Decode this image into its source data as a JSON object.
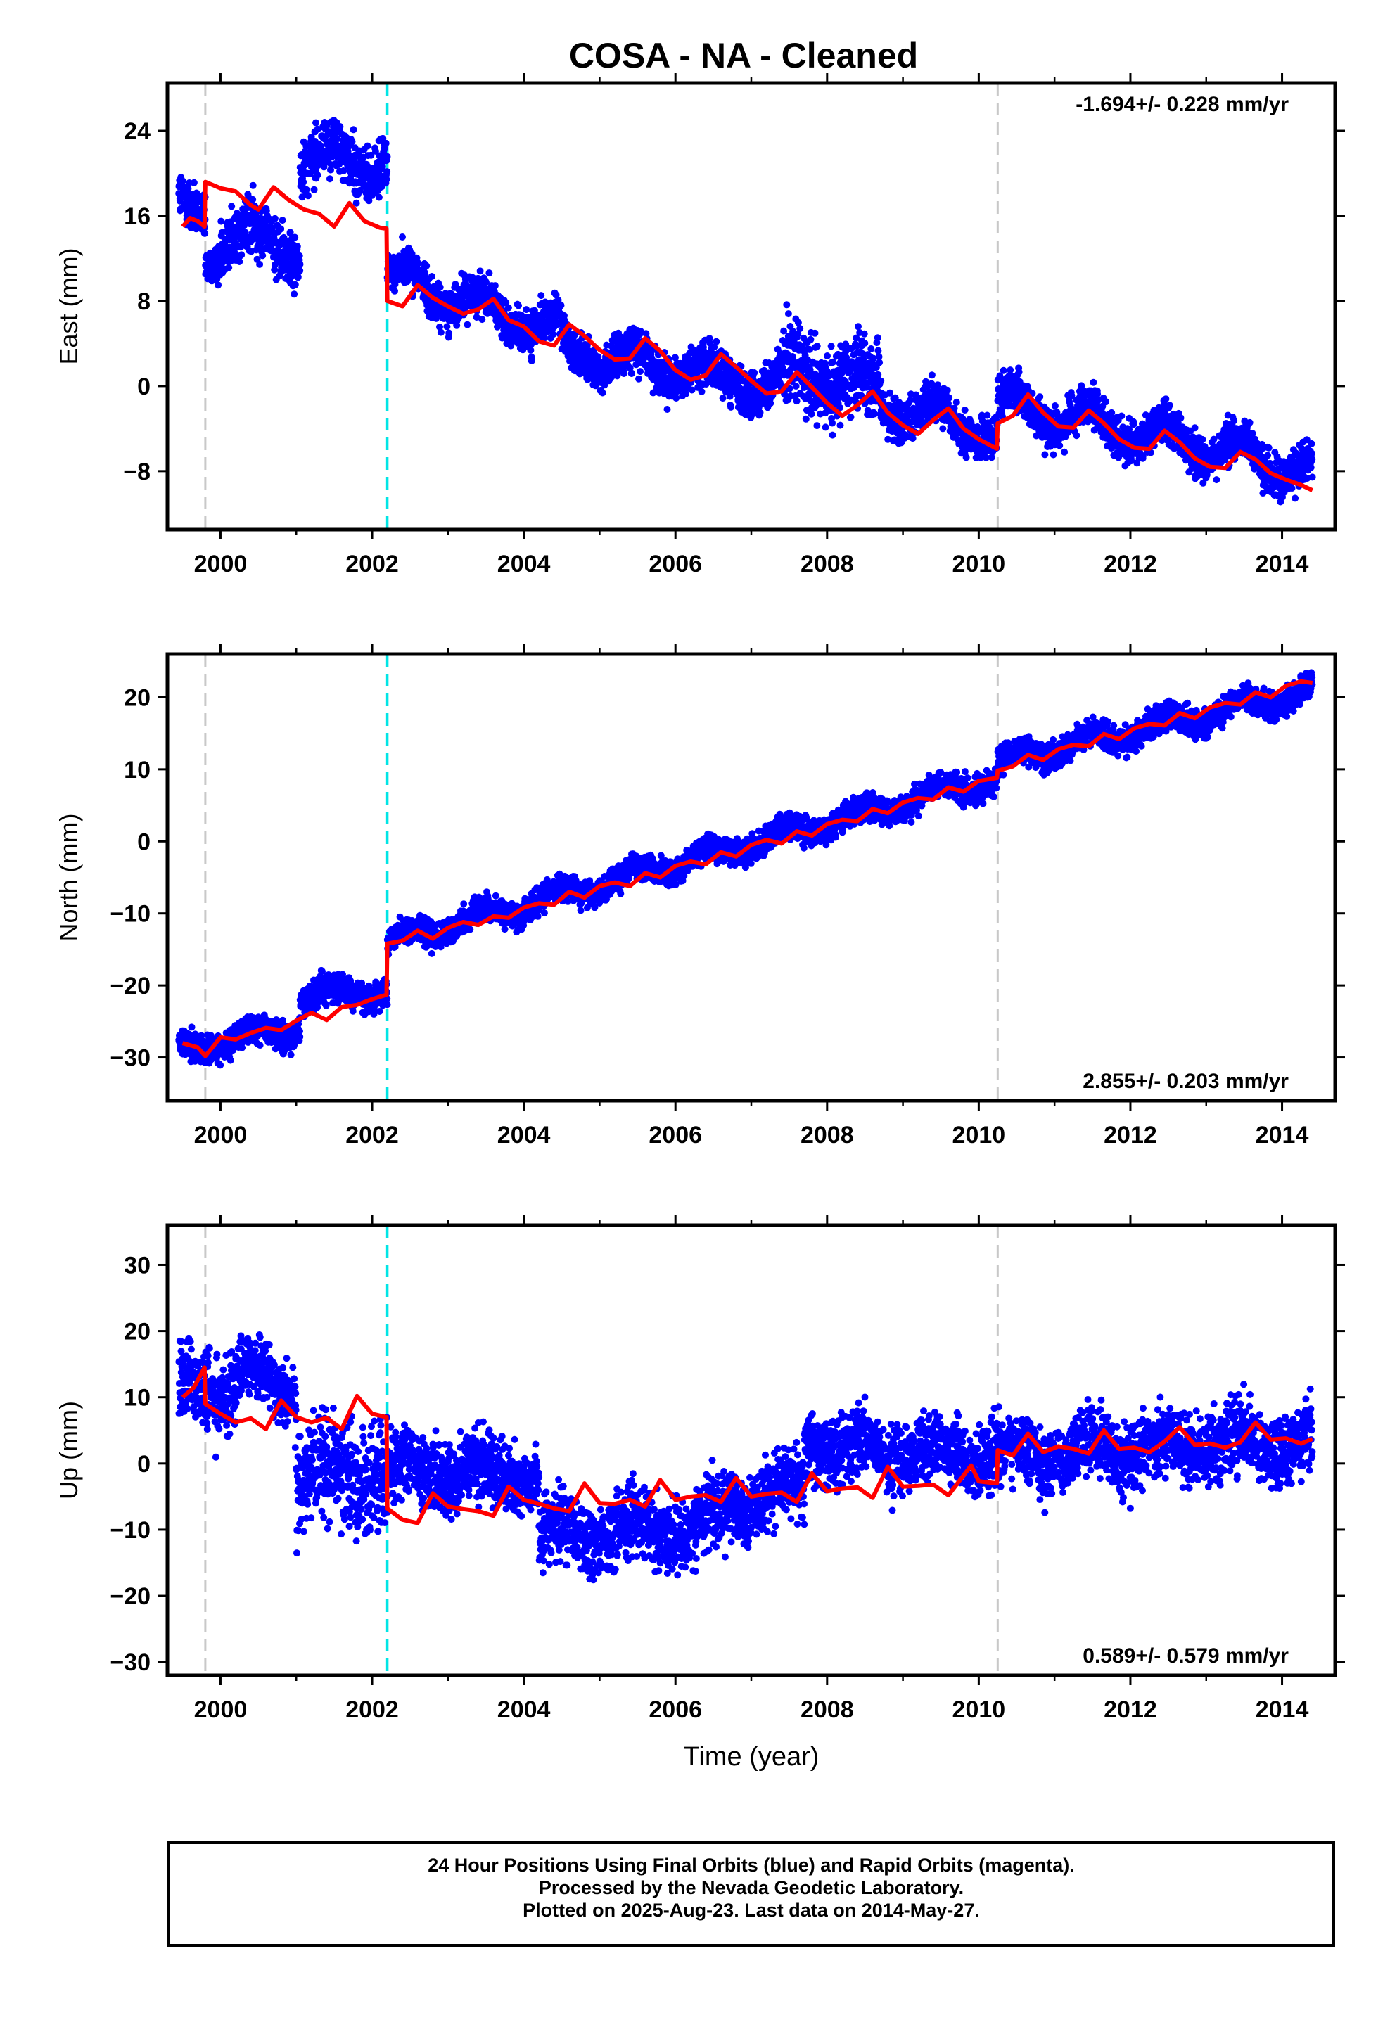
{
  "title": "COSA  - NA - Cleaned",
  "footer": {
    "line1": "24 Hour Positions Using Final Orbits (blue) and Rapid Orbits (magenta).",
    "line2": "Processed by the Nevada Geodetic Laboratory.",
    "line3": "Plotted on 2025-Aug-23. Last data on 2014-May-27."
  },
  "colors": {
    "data": "#0000ff",
    "model": "#ff0000",
    "offset_line": "#c8c8c8",
    "equipment_line": "#00e5e5"
  },
  "chart_data": [
    {
      "type": "scatter",
      "ylabel": "East (mm)",
      "xlabel": "",
      "rate_label": "-1.694+/- 0.228 mm/yr",
      "rate_position": "top-right",
      "xlim": [
        1999.3,
        2014.7
      ],
      "ylim": [
        -13.5,
        28.5
      ],
      "yticks": [
        -8,
        0,
        8,
        16,
        24
      ],
      "xticks": [
        2000,
        2002,
        2004,
        2006,
        2008,
        2010,
        2012,
        2014
      ],
      "vlines_gray": [
        1999.8,
        2010.25
      ],
      "vlines_cyan": [
        2002.2
      ],
      "data_segments": [
        {
          "x0": 1999.45,
          "x1": 1999.8,
          "y0": 16.5,
          "y1": 16.0,
          "noise": 2.0
        },
        {
          "x0": 1999.8,
          "x1": 2000.0,
          "y0": 12.0,
          "y1": 13.0,
          "noise": 1.5
        },
        {
          "x0": 2000.0,
          "x1": 2001.05,
          "y0": 14.5,
          "y1": 13.0,
          "noise": 2.3
        },
        {
          "x0": 2001.05,
          "x1": 2002.2,
          "y0": 21.5,
          "y1": 21.0,
          "noise": 2.1
        },
        {
          "x0": 2002.2,
          "x1": 2004.5,
          "y0": 10.5,
          "y1": 5.0,
          "noise": 1.6
        },
        {
          "x0": 2004.5,
          "x1": 2007.4,
          "y0": 3.5,
          "y1": 0.0,
          "noise": 1.7
        },
        {
          "x0": 2007.4,
          "x1": 2008.7,
          "y0": 1.5,
          "y1": 0.0,
          "noise": 3.2
        },
        {
          "x0": 2008.7,
          "x1": 2010.25,
          "y0": -1.5,
          "y1": -4.5,
          "noise": 1.6
        },
        {
          "x0": 2010.25,
          "x1": 2014.4,
          "y0": -1.5,
          "y1": -8.0,
          "noise": 1.6
        }
      ],
      "seasonal_amp": 1.4,
      "model": [
        [
          1999.5,
          15.0
        ],
        [
          1999.6,
          15.8
        ],
        [
          1999.7,
          15.5
        ],
        [
          1999.79,
          15.0
        ],
        [
          1999.8,
          19.2
        ],
        [
          2000.0,
          18.6
        ],
        [
          2000.2,
          18.3
        ],
        [
          2000.4,
          17.0
        ],
        [
          2000.5,
          16.6
        ],
        [
          2000.7,
          18.7
        ],
        [
          2000.9,
          17.5
        ],
        [
          2001.1,
          16.6
        ],
        [
          2001.3,
          16.2
        ],
        [
          2001.5,
          15.0
        ],
        [
          2001.7,
          17.2
        ],
        [
          2001.9,
          15.5
        ],
        [
          2002.1,
          14.9
        ],
        [
          2002.19,
          14.8
        ],
        [
          2002.2,
          8.0
        ],
        [
          2002.4,
          7.5
        ],
        [
          2002.6,
          9.5
        ],
        [
          2002.8,
          8.3
        ],
        [
          2003.0,
          7.5
        ],
        [
          2003.2,
          6.8
        ],
        [
          2003.4,
          7.2
        ],
        [
          2003.6,
          8.2
        ],
        [
          2003.8,
          6.2
        ],
        [
          2004.0,
          5.6
        ],
        [
          2004.2,
          4.2
        ],
        [
          2004.4,
          3.8
        ],
        [
          2004.6,
          5.8
        ],
        [
          2004.8,
          4.7
        ],
        [
          2005.0,
          3.4
        ],
        [
          2005.2,
          2.5
        ],
        [
          2005.4,
          2.6
        ],
        [
          2005.6,
          4.5
        ],
        [
          2005.8,
          3.3
        ],
        [
          2006.0,
          1.5
        ],
        [
          2006.2,
          0.6
        ],
        [
          2006.4,
          1.0
        ],
        [
          2006.6,
          3.0
        ],
        [
          2006.8,
          1.8
        ],
        [
          2007.0,
          0.5
        ],
        [
          2007.2,
          -0.7
        ],
        [
          2007.4,
          -0.5
        ],
        [
          2007.6,
          1.3
        ],
        [
          2007.8,
          -0.1
        ],
        [
          2008.0,
          -1.6
        ],
        [
          2008.2,
          -2.8
        ],
        [
          2008.4,
          -1.8
        ],
        [
          2008.6,
          -0.5
        ],
        [
          2008.8,
          -2.5
        ],
        [
          2009.0,
          -3.7
        ],
        [
          2009.2,
          -4.5
        ],
        [
          2009.4,
          -3.2
        ],
        [
          2009.6,
          -2.1
        ],
        [
          2009.8,
          -4.0
        ],
        [
          2010.0,
          -5.0
        ],
        [
          2010.24,
          -5.9
        ],
        [
          2010.25,
          -3.5
        ],
        [
          2010.45,
          -2.8
        ],
        [
          2010.65,
          -0.8
        ],
        [
          2010.85,
          -2.5
        ],
        [
          2011.05,
          -3.8
        ],
        [
          2011.25,
          -3.9
        ],
        [
          2011.45,
          -2.3
        ],
        [
          2011.65,
          -3.5
        ],
        [
          2011.85,
          -5.0
        ],
        [
          2012.05,
          -5.8
        ],
        [
          2012.25,
          -5.9
        ],
        [
          2012.45,
          -4.2
        ],
        [
          2012.65,
          -5.3
        ],
        [
          2012.85,
          -6.8
        ],
        [
          2013.05,
          -7.6
        ],
        [
          2013.25,
          -7.7
        ],
        [
          2013.45,
          -6.2
        ],
        [
          2013.65,
          -6.9
        ],
        [
          2013.85,
          -8.2
        ],
        [
          2014.05,
          -8.8
        ],
        [
          2014.25,
          -9.3
        ],
        [
          2014.4,
          -9.8
        ]
      ]
    },
    {
      "type": "scatter",
      "ylabel": "North (mm)",
      "xlabel": "",
      "rate_label": "2.855+/- 0.203 mm/yr",
      "rate_position": "bottom-right",
      "xlim": [
        1999.3,
        2014.7
      ],
      "ylim": [
        -36,
        26
      ],
      "yticks": [
        -30,
        -20,
        -10,
        0,
        10,
        20
      ],
      "xticks": [
        2000,
        2002,
        2004,
        2006,
        2008,
        2010,
        2012,
        2014
      ],
      "vlines_gray": [
        1999.8,
        2010.25
      ],
      "vlines_cyan": [
        2002.2
      ],
      "data_segments": [
        {
          "x0": 1999.45,
          "x1": 2001.05,
          "y0": -29.0,
          "y1": -26.0,
          "noise": 1.6
        },
        {
          "x0": 2001.05,
          "x1": 2002.2,
          "y0": -21.5,
          "y1": -20.5,
          "noise": 1.7
        },
        {
          "x0": 2002.2,
          "x1": 2010.25,
          "y0": -14.0,
          "y1": 9.0,
          "noise": 1.5
        },
        {
          "x0": 2010.25,
          "x1": 2014.4,
          "y0": 11.0,
          "y1": 21.0,
          "noise": 1.6
        }
      ],
      "seasonal_amp": 1.1,
      "model": [
        [
          1999.5,
          -28.0
        ],
        [
          1999.7,
          -28.6
        ],
        [
          1999.8,
          -29.8
        ],
        [
          2000.0,
          -27.2
        ],
        [
          2000.2,
          -27.5
        ],
        [
          2000.4,
          -26.6
        ],
        [
          2000.6,
          -25.9
        ],
        [
          2000.8,
          -26.2
        ],
        [
          2001.0,
          -24.9
        ],
        [
          2001.2,
          -23.8
        ],
        [
          2001.4,
          -24.8
        ],
        [
          2001.6,
          -23.0
        ],
        [
          2001.8,
          -22.7
        ],
        [
          2002.0,
          -21.9
        ],
        [
          2002.19,
          -21.3
        ],
        [
          2002.2,
          -14.2
        ],
        [
          2002.4,
          -13.8
        ],
        [
          2002.6,
          -12.4
        ],
        [
          2002.8,
          -13.5
        ],
        [
          2003.0,
          -12.0
        ],
        [
          2003.2,
          -11.2
        ],
        [
          2003.4,
          -11.6
        ],
        [
          2003.6,
          -10.4
        ],
        [
          2003.8,
          -10.6
        ],
        [
          2004.0,
          -9.2
        ],
        [
          2004.2,
          -8.6
        ],
        [
          2004.4,
          -8.8
        ],
        [
          2004.6,
          -7.0
        ],
        [
          2004.8,
          -7.8
        ],
        [
          2005.0,
          -6.2
        ],
        [
          2005.2,
          -5.7
        ],
        [
          2005.4,
          -6.2
        ],
        [
          2005.6,
          -4.4
        ],
        [
          2005.8,
          -5.0
        ],
        [
          2006.0,
          -3.4
        ],
        [
          2006.2,
          -2.8
        ],
        [
          2006.4,
          -3.2
        ],
        [
          2006.6,
          -1.5
        ],
        [
          2006.8,
          -2.1
        ],
        [
          2007.0,
          -0.5
        ],
        [
          2007.2,
          0.2
        ],
        [
          2007.4,
          -0.3
        ],
        [
          2007.6,
          1.4
        ],
        [
          2007.8,
          0.8
        ],
        [
          2008.0,
          2.4
        ],
        [
          2008.2,
          3.0
        ],
        [
          2008.4,
          2.8
        ],
        [
          2008.6,
          4.5
        ],
        [
          2008.8,
          3.9
        ],
        [
          2009.0,
          5.4
        ],
        [
          2009.2,
          6.0
        ],
        [
          2009.4,
          5.8
        ],
        [
          2009.6,
          7.5
        ],
        [
          2009.8,
          6.9
        ],
        [
          2010.0,
          8.4
        ],
        [
          2010.24,
          8.8
        ],
        [
          2010.25,
          9.8
        ],
        [
          2010.45,
          10.4
        ],
        [
          2010.65,
          12.0
        ],
        [
          2010.85,
          11.3
        ],
        [
          2011.05,
          12.8
        ],
        [
          2011.25,
          13.4
        ],
        [
          2011.45,
          13.2
        ],
        [
          2011.65,
          14.9
        ],
        [
          2011.85,
          14.2
        ],
        [
          2012.05,
          15.7
        ],
        [
          2012.25,
          16.3
        ],
        [
          2012.45,
          16.1
        ],
        [
          2012.65,
          17.8
        ],
        [
          2012.85,
          17.1
        ],
        [
          2013.05,
          18.6
        ],
        [
          2013.25,
          19.2
        ],
        [
          2013.45,
          19.0
        ],
        [
          2013.65,
          20.7
        ],
        [
          2013.85,
          20.0
        ],
        [
          2014.05,
          21.6
        ],
        [
          2014.25,
          22.2
        ],
        [
          2014.4,
          22.0
        ]
      ]
    },
    {
      "type": "scatter",
      "ylabel": "Up (mm)",
      "xlabel": "Time (year)",
      "rate_label": "0.589+/- 0.579 mm/yr",
      "rate_position": "bottom-right",
      "xlim": [
        1999.3,
        2014.7
      ],
      "ylim": [
        -32,
        36
      ],
      "yticks": [
        -30,
        -20,
        -10,
        0,
        10,
        20,
        30
      ],
      "xticks": [
        2000,
        2002,
        2004,
        2006,
        2008,
        2010,
        2012,
        2014
      ],
      "vlines_gray": [
        1999.8,
        2010.25
      ],
      "vlines_cyan": [
        2002.2
      ],
      "data_segments": [
        {
          "x0": 1999.45,
          "x1": 2000.2,
          "y0": 12.0,
          "y1": 11.0,
          "noise": 5.0
        },
        {
          "x0": 2000.2,
          "x1": 2001.0,
          "y0": 14.0,
          "y1": 11.0,
          "noise": 4.0
        },
        {
          "x0": 2001.0,
          "x1": 2002.2,
          "y0": -2.0,
          "y1": -1.0,
          "noise": 6.5
        },
        {
          "x0": 2002.2,
          "x1": 2004.2,
          "y0": -1.0,
          "y1": -2.0,
          "noise": 4.5
        },
        {
          "x0": 2004.2,
          "x1": 2006.6,
          "y0": -11.0,
          "y1": -9.0,
          "noise": 4.5
        },
        {
          "x0": 2006.6,
          "x1": 2007.7,
          "y0": -7.0,
          "y1": -3.0,
          "noise": 4.5
        },
        {
          "x0": 2007.7,
          "x1": 2010.25,
          "y0": 3.0,
          "y1": 1.0,
          "noise": 4.5
        },
        {
          "x0": 2010.25,
          "x1": 2014.4,
          "y0": 1.0,
          "y1": 3.5,
          "noise": 4.3
        }
      ],
      "seasonal_amp": 1.8,
      "model": [
        [
          1999.5,
          10.0
        ],
        [
          1999.65,
          11.5
        ],
        [
          1999.79,
          14.5
        ],
        [
          1999.8,
          9.0
        ],
        [
          2000.0,
          7.5
        ],
        [
          2000.2,
          6.2
        ],
        [
          2000.4,
          6.8
        ],
        [
          2000.6,
          5.2
        ],
        [
          2000.8,
          9.5
        ],
        [
          2001.0,
          7.0
        ],
        [
          2001.2,
          6.2
        ],
        [
          2001.4,
          6.9
        ],
        [
          2001.6,
          5.2
        ],
        [
          2001.8,
          10.2
        ],
        [
          2002.0,
          7.5
        ],
        [
          2002.19,
          7.0
        ],
        [
          2002.2,
          -6.8
        ],
        [
          2002.4,
          -8.5
        ],
        [
          2002.6,
          -9.0
        ],
        [
          2002.8,
          -4.5
        ],
        [
          2003.0,
          -6.5
        ],
        [
          2003.2,
          -6.9
        ],
        [
          2003.4,
          -7.2
        ],
        [
          2003.6,
          -7.9
        ],
        [
          2003.8,
          -3.5
        ],
        [
          2004.0,
          -5.5
        ],
        [
          2004.2,
          -6.1
        ],
        [
          2004.4,
          -6.8
        ],
        [
          2004.6,
          -7.2
        ],
        [
          2004.8,
          -3.0
        ],
        [
          2005.0,
          -6.0
        ],
        [
          2005.2,
          -6.1
        ],
        [
          2005.4,
          -5.5
        ],
        [
          2005.6,
          -6.5
        ],
        [
          2005.8,
          -2.5
        ],
        [
          2006.0,
          -5.5
        ],
        [
          2006.2,
          -5.0
        ],
        [
          2006.4,
          -4.8
        ],
        [
          2006.6,
          -5.8
        ],
        [
          2006.8,
          -2.2
        ],
        [
          2007.0,
          -5.0
        ],
        [
          2007.2,
          -4.6
        ],
        [
          2007.4,
          -4.4
        ],
        [
          2007.6,
          -5.8
        ],
        [
          2007.8,
          -1.5
        ],
        [
          2008.0,
          -4.2
        ],
        [
          2008.2,
          -3.8
        ],
        [
          2008.4,
          -3.6
        ],
        [
          2008.6,
          -5.2
        ],
        [
          2008.8,
          -0.5
        ],
        [
          2009.0,
          -3.5
        ],
        [
          2009.2,
          -3.4
        ],
        [
          2009.4,
          -3.2
        ],
        [
          2009.6,
          -4.8
        ],
        [
          2009.9,
          -0.3
        ],
        [
          2010.0,
          -2.7
        ],
        [
          2010.24,
          -3.0
        ],
        [
          2010.25,
          2.0
        ],
        [
          2010.45,
          1.2
        ],
        [
          2010.65,
          4.5
        ],
        [
          2010.85,
          1.7
        ],
        [
          2011.05,
          2.6
        ],
        [
          2011.25,
          2.2
        ],
        [
          2011.45,
          1.5
        ],
        [
          2011.65,
          5.0
        ],
        [
          2011.85,
          2.2
        ],
        [
          2012.05,
          2.4
        ],
        [
          2012.25,
          1.7
        ],
        [
          2012.45,
          3.3
        ],
        [
          2012.65,
          5.5
        ],
        [
          2012.85,
          2.8
        ],
        [
          2013.05,
          3.0
        ],
        [
          2013.25,
          2.4
        ],
        [
          2013.45,
          3.2
        ],
        [
          2013.65,
          6.2
        ],
        [
          2013.85,
          3.6
        ],
        [
          2014.05,
          3.8
        ],
        [
          2014.25,
          3.0
        ],
        [
          2014.4,
          3.7
        ]
      ]
    }
  ]
}
